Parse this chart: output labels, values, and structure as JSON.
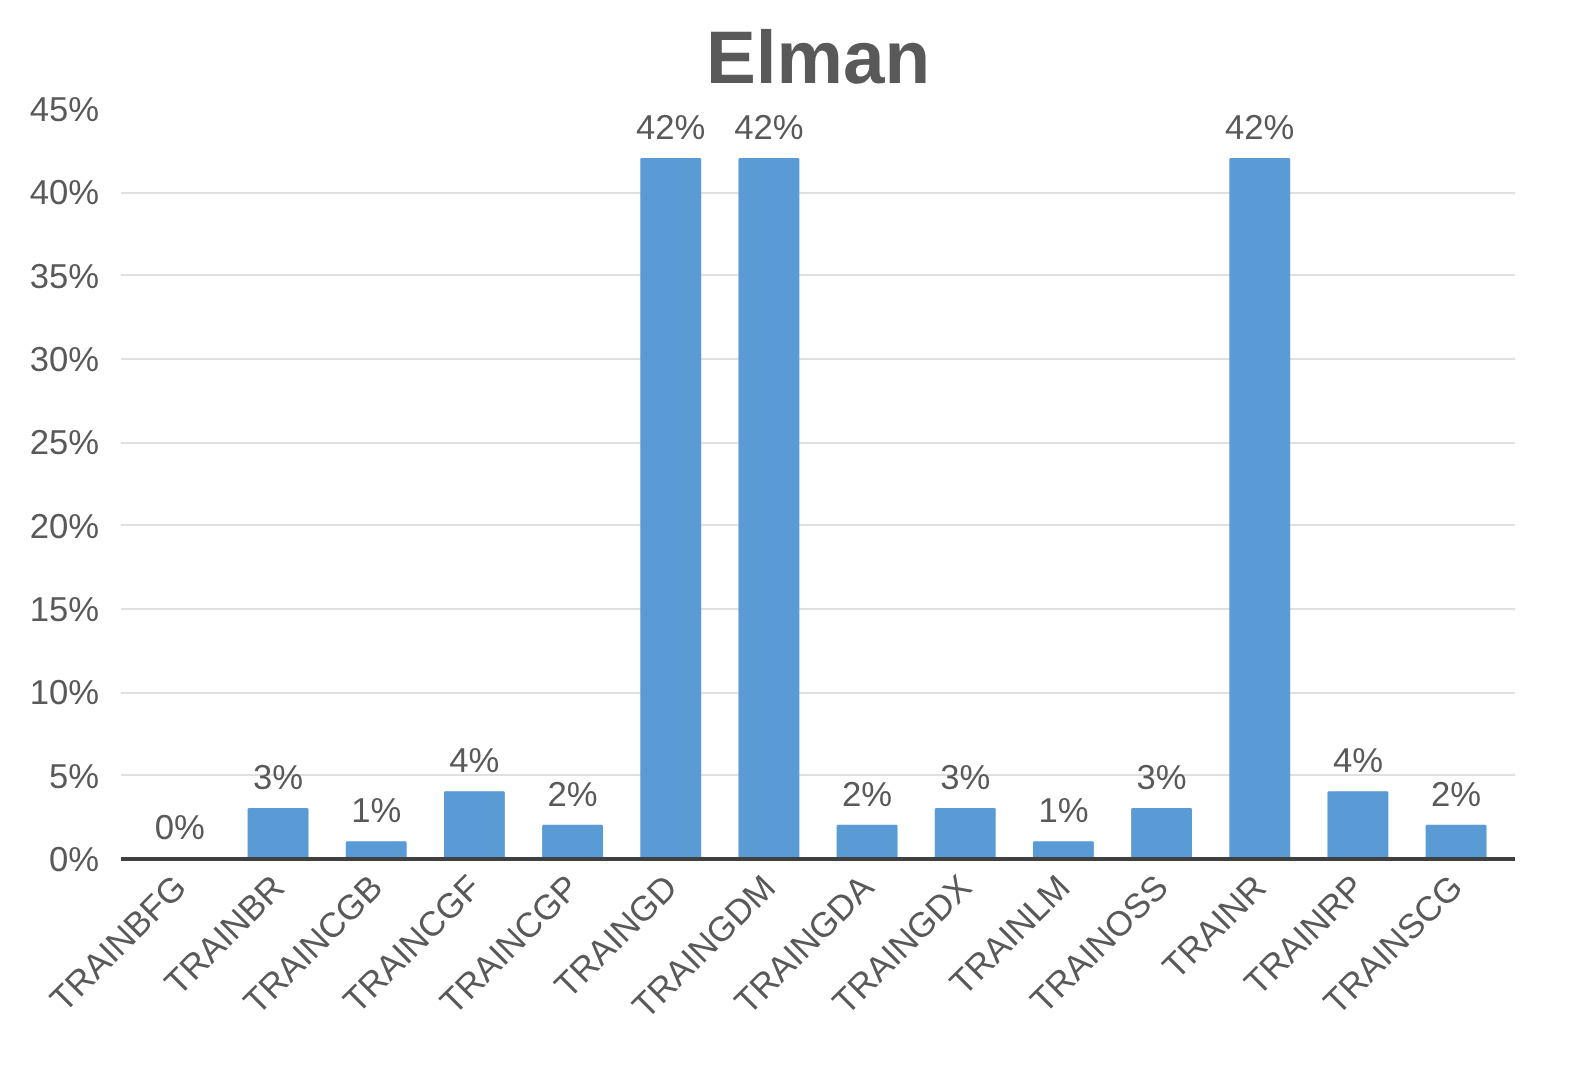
{
  "chart_data": {
    "type": "bar",
    "title": "Elman",
    "categories": [
      "TRAINBFG",
      "TRAINBR",
      "TRAINCGB",
      "TRAINCGF",
      "TRAINCGP",
      "TRAINGD",
      "TRAINGDM",
      "TRAINGDA",
      "TRAINGDX",
      "TRAINLM",
      "TRAINOSS",
      "TRAINR",
      "TRAINRP",
      "TRAINSCG"
    ],
    "values": [
      0,
      3,
      1,
      4,
      2,
      42,
      42,
      2,
      3,
      1,
      3,
      42,
      4,
      2
    ],
    "value_labels": [
      "0%",
      "3%",
      "1%",
      "4%",
      "2%",
      "42%",
      "42%",
      "2%",
      "3%",
      "1%",
      "3%",
      "42%",
      "4%",
      "2%"
    ],
    "color": "#5b9bd5",
    "ylim": [
      0,
      45
    ],
    "yticks": [
      {
        "value": 0,
        "label": "0%"
      },
      {
        "value": 5,
        "label": "5%"
      },
      {
        "value": 10,
        "label": "10%"
      },
      {
        "value": 15,
        "label": "15%"
      },
      {
        "value": 20,
        "label": "20%"
      },
      {
        "value": 25,
        "label": "25%"
      },
      {
        "value": 30,
        "label": "30%"
      },
      {
        "value": 35,
        "label": "35%"
      },
      {
        "value": 40,
        "label": "40%"
      },
      {
        "value": 45,
        "label": "45%"
      }
    ],
    "grid": "y"
  }
}
